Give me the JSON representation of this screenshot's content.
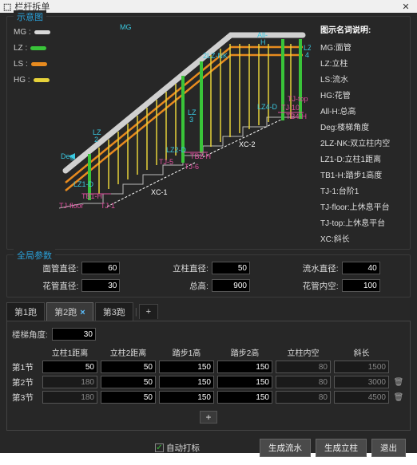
{
  "window": {
    "title": "栏杆拆单"
  },
  "diagram": {
    "title": "示意图",
    "legend_left": [
      {
        "key": "MG",
        "label": "MG :",
        "color": "#d8d8d8"
      },
      {
        "key": "LZ",
        "label": "LZ :",
        "color": "#39c439"
      },
      {
        "key": "LS",
        "label": "LS :",
        "color": "#e88b1f"
      },
      {
        "key": "HG",
        "label": "HG :",
        "color": "#e6d23a"
      }
    ],
    "legend_right_header": "图示名词说明:",
    "legend_right": [
      "MG:面管",
      "LZ:立柱",
      "LS:流水",
      "HG:花管",
      "All-H:总高",
      "Deg:楼梯角度",
      "2LZ-NK:双立柱内空",
      "LZ1-D:立柱1距离",
      "TB1-H:踏步1高度",
      "TJ-1:台阶1",
      "TJ-floor:上休息平台",
      "TJ-top:上休息平台",
      "XC:斜长"
    ],
    "annot": {
      "mg": "MG",
      "nk2lz": "2LZ-NK",
      "allh": "All-\nH",
      "lz4": "LZ\n4",
      "lz4d": "LZ4-D",
      "lz3": "LZ\n3",
      "lz2d": "LZ2-D",
      "tb2h": "TB2-H",
      "tj5": "TJ-5",
      "tj6": "TJ-6",
      "xc2": "XC-2",
      "lz2": "LZ\n2",
      "xc1": "XC-1",
      "lz1d": "LZ1-D",
      "tb1h": "TB1-H",
      "deg": "Deg.",
      "tjfloor": "TJ-floor",
      "tj1": "TJ-1",
      "tjtop": "TJ-top",
      "tj10": "TJ-10",
      "tb4h": "TB4-H"
    }
  },
  "global": {
    "title": "全局参数",
    "row1": [
      {
        "label": "面管直径:",
        "value": "60",
        "name": "mg-dia"
      },
      {
        "label": "立柱直径:",
        "value": "50",
        "name": "lz-dia"
      },
      {
        "label": "流水直径:",
        "value": "40",
        "name": "ls-dia"
      }
    ],
    "row2": [
      {
        "label": "花管直径:",
        "value": "30",
        "name": "hg-dia"
      },
      {
        "label": "总高:",
        "value": "900",
        "name": "all-h"
      },
      {
        "label": "花管内空:",
        "value": "100",
        "name": "hg-nk"
      }
    ]
  },
  "tabs": {
    "items": [
      {
        "label": "第1跑",
        "active": false
      },
      {
        "label": "第2跑",
        "active": true
      },
      {
        "label": "第3跑",
        "active": false
      }
    ],
    "add": "+"
  },
  "panel": {
    "angle_label": "楼梯角度:",
    "angle_value": "30",
    "columns": [
      "立柱1距离",
      "立柱2距离",
      "踏步1高",
      "踏步2高",
      "立柱内空",
      "斜长"
    ],
    "rows": [
      {
        "label": "第1节",
        "vals": [
          "50",
          "50",
          "150",
          "150",
          "80",
          "1500"
        ],
        "ro": [
          false,
          false,
          false,
          false,
          true,
          true
        ],
        "del": false
      },
      {
        "label": "第2节",
        "vals": [
          "180",
          "50",
          "150",
          "150",
          "80",
          "3000"
        ],
        "ro": [
          true,
          false,
          false,
          false,
          true,
          true
        ],
        "del": true
      },
      {
        "label": "第3节",
        "vals": [
          "180",
          "50",
          "150",
          "150",
          "80",
          "4500"
        ],
        "ro": [
          true,
          false,
          false,
          false,
          true,
          true
        ],
        "del": true
      }
    ],
    "add": "+"
  },
  "footer": {
    "auto_label": "自动打标",
    "auto_checked": true,
    "btn_ls": "生成流水",
    "btn_lz": "生成立柱",
    "btn_exit": "退出"
  },
  "colors": {
    "cyan": "#3ac8e0",
    "green": "#39c439",
    "orange": "#e88b1f",
    "yellow": "#e6d23a",
    "grey": "#d0d0d0",
    "magenta": "#e050a0"
  }
}
